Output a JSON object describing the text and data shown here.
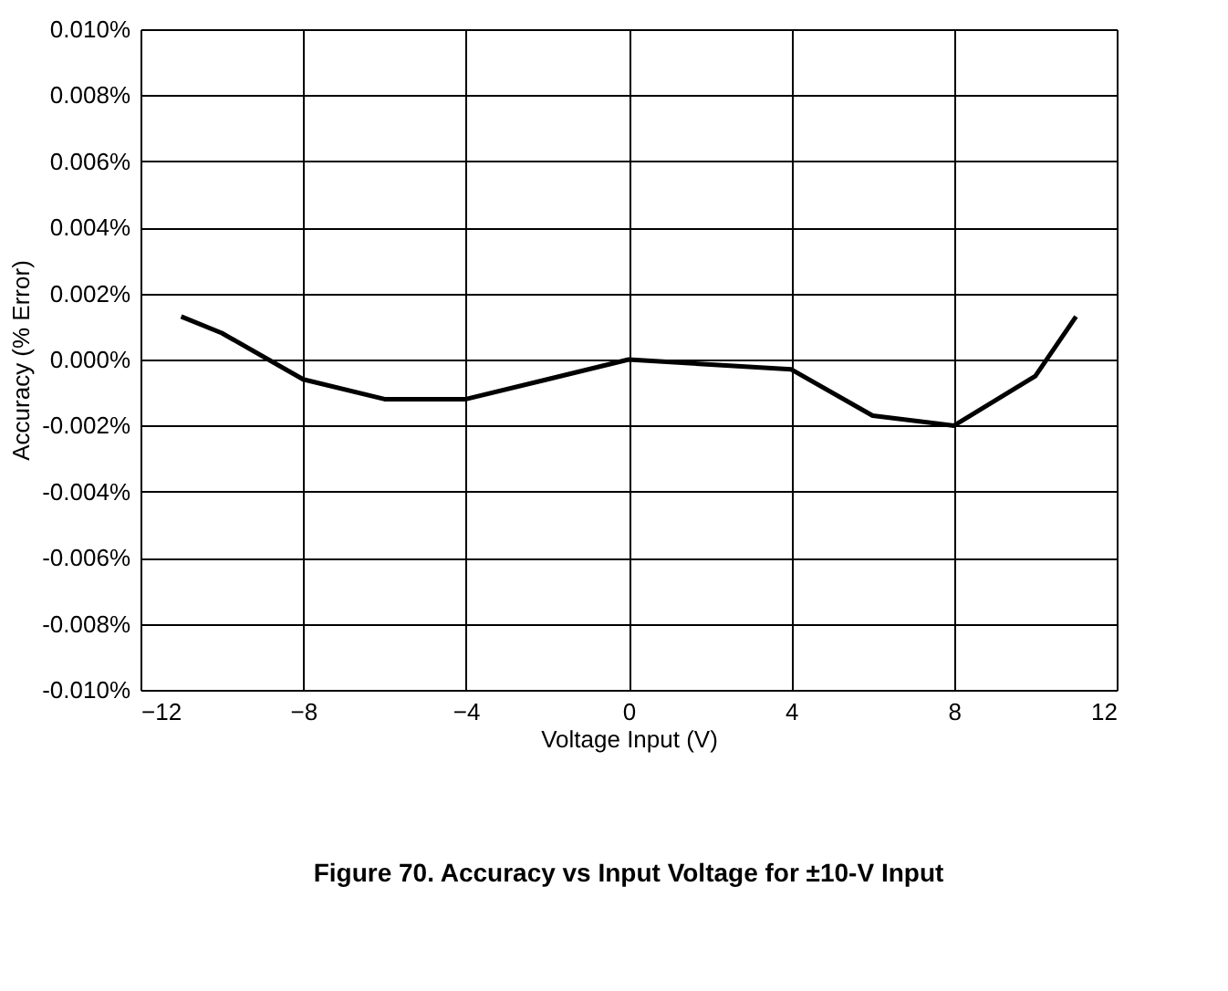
{
  "chart_data": {
    "type": "line",
    "xlabel": "Voltage Input (V)",
    "ylabel": "Accuracy (% Error)",
    "annotations": [
      "Figure 70. Accuracy vs Input Voltage for ±10-V Input"
    ],
    "series": [
      {
        "color": "#000000",
        "x": [
          -11,
          -10,
          -8,
          -6,
          -4,
          -2,
          0,
          4,
          6,
          8,
          10,
          11
        ],
        "values": [
          0.0013,
          0.0008,
          -0.0006,
          -0.0012,
          -0.0012,
          -0.0006,
          0.0,
          -0.0003,
          -0.0017,
          -0.002,
          -0.0005,
          0.0013
        ]
      }
    ],
    "xlim": [
      -12,
      12
    ],
    "xticks": [
      -12,
      -8,
      -4,
      0,
      4,
      8,
      12
    ],
    "ylim": [
      -0.01,
      0.01
    ],
    "yticks": [
      {
        "value": -0.01,
        "label": "-0.010%"
      },
      {
        "value": -0.008,
        "label": "-0.008%"
      },
      {
        "value": -0.006,
        "label": "-0.006%"
      },
      {
        "value": -0.004,
        "label": "-0.004%"
      },
      {
        "value": -0.002,
        "label": "-0.002%"
      },
      {
        "value": 0,
        "label": "0.000%"
      },
      {
        "value": 0.002,
        "label": "0.002%"
      },
      {
        "value": 0.004,
        "label": "0.004%"
      },
      {
        "value": 0.006,
        "label": "0.006%"
      },
      {
        "value": 0.008,
        "label": "0.008%"
      },
      {
        "value": 0.01,
        "label": "0.010%"
      }
    ],
    "grid": true,
    "marker": "none",
    "line_style": "solid",
    "legend": false
  }
}
